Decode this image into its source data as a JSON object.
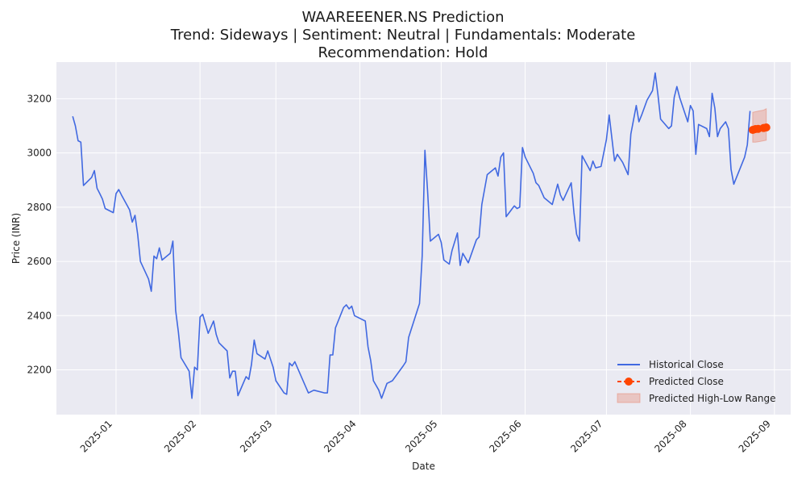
{
  "chart_data": {
    "type": "line",
    "title": "WAAREEENER.NS Prediction",
    "subtitle": "Trend: Sideways | Sentiment: Neutral | Fundamentals: Moderate",
    "recommendation": "Recommendation: Hold",
    "xlabel": "Date",
    "ylabel": "Price (INR)",
    "xlim": [
      "2024-12-10",
      "2025-09-07"
    ],
    "ylim": [
      2035,
      3335
    ],
    "x_ticks": [
      "2025-01-01",
      "2025-02-01",
      "2025-03-01",
      "2025-04-01",
      "2025-05-01",
      "2025-06-01",
      "2025-07-01",
      "2025-08-01",
      "2025-09-01"
    ],
    "x_tick_labels": [
      "2025-01",
      "2025-02",
      "2025-03",
      "2025-04",
      "2025-05",
      "2025-06",
      "2025-07",
      "2025-08",
      "2025-09"
    ],
    "y_ticks": [
      2200,
      2400,
      2600,
      2800,
      3000,
      3200
    ],
    "grid": true,
    "legend_position": "lower-right",
    "colors": {
      "historical": "#4169e1",
      "predicted": "#ff4500",
      "range": "#e8826b"
    },
    "series": [
      {
        "name": "Historical Close",
        "style": "solid",
        "points": [
          [
            "2024-12-16",
            3135
          ],
          [
            "2024-12-17",
            3100
          ],
          [
            "2024-12-18",
            3045
          ],
          [
            "2024-12-19",
            3040
          ],
          [
            "2024-12-20",
            2880
          ],
          [
            "2024-12-23",
            2910
          ],
          [
            "2024-12-24",
            2935
          ],
          [
            "2024-12-25",
            2870
          ],
          [
            "2024-12-26",
            2850
          ],
          [
            "2024-12-27",
            2830
          ],
          [
            "2024-12-28",
            2795
          ],
          [
            "2024-12-31",
            2780
          ],
          [
            "2025-01-01",
            2850
          ],
          [
            "2025-01-02",
            2865
          ],
          [
            "2025-01-03",
            2845
          ],
          [
            "2025-01-06",
            2790
          ],
          [
            "2025-01-07",
            2745
          ],
          [
            "2025-01-08",
            2770
          ],
          [
            "2025-01-09",
            2700
          ],
          [
            "2025-01-10",
            2600
          ],
          [
            "2025-01-13",
            2535
          ],
          [
            "2025-01-14",
            2490
          ],
          [
            "2025-01-15",
            2620
          ],
          [
            "2025-01-16",
            2610
          ],
          [
            "2025-01-17",
            2650
          ],
          [
            "2025-01-18",
            2605
          ],
          [
            "2025-01-21",
            2630
          ],
          [
            "2025-01-22",
            2675
          ],
          [
            "2025-01-23",
            2420
          ],
          [
            "2025-01-24",
            2340
          ],
          [
            "2025-01-25",
            2245
          ],
          [
            "2025-01-28",
            2195
          ],
          [
            "2025-01-29",
            2095
          ],
          [
            "2025-01-30",
            2210
          ],
          [
            "2025-01-31",
            2200
          ],
          [
            "2025-02-01",
            2395
          ],
          [
            "2025-02-02",
            2405
          ],
          [
            "2025-02-04",
            2335
          ],
          [
            "2025-02-06",
            2380
          ],
          [
            "2025-02-07",
            2330
          ],
          [
            "2025-02-08",
            2300
          ],
          [
            "2025-02-11",
            2270
          ],
          [
            "2025-02-12",
            2170
          ],
          [
            "2025-02-13",
            2195
          ],
          [
            "2025-02-14",
            2195
          ],
          [
            "2025-02-15",
            2105
          ],
          [
            "2025-02-18",
            2175
          ],
          [
            "2025-02-19",
            2165
          ],
          [
            "2025-02-20",
            2220
          ],
          [
            "2025-02-21",
            2310
          ],
          [
            "2025-02-22",
            2260
          ],
          [
            "2025-02-25",
            2240
          ],
          [
            "2025-02-26",
            2270
          ],
          [
            "2025-02-28",
            2210
          ],
          [
            "2025-03-01",
            2160
          ],
          [
            "2025-03-04",
            2115
          ],
          [
            "2025-03-05",
            2110
          ],
          [
            "2025-03-06",
            2225
          ],
          [
            "2025-03-07",
            2215
          ],
          [
            "2025-03-08",
            2230
          ],
          [
            "2025-03-13",
            2115
          ],
          [
            "2025-03-15",
            2125
          ],
          [
            "2025-03-19",
            2115
          ],
          [
            "2025-03-20",
            2115
          ],
          [
            "2025-03-21",
            2255
          ],
          [
            "2025-03-22",
            2255
          ],
          [
            "2025-03-23",
            2355
          ],
          [
            "2025-03-26",
            2430
          ],
          [
            "2025-03-27",
            2440
          ],
          [
            "2025-03-28",
            2425
          ],
          [
            "2025-03-29",
            2435
          ],
          [
            "2025-03-30",
            2400
          ],
          [
            "2025-04-03",
            2380
          ],
          [
            "2025-04-04",
            2285
          ],
          [
            "2025-04-05",
            2235
          ],
          [
            "2025-04-06",
            2160
          ],
          [
            "2025-04-08",
            2125
          ],
          [
            "2025-04-09",
            2095
          ],
          [
            "2025-04-11",
            2150
          ],
          [
            "2025-04-13",
            2160
          ],
          [
            "2025-04-17",
            2215
          ],
          [
            "2025-04-18",
            2230
          ],
          [
            "2025-04-19",
            2320
          ],
          [
            "2025-04-23",
            2445
          ],
          [
            "2025-04-24",
            2620
          ],
          [
            "2025-04-25",
            3010
          ],
          [
            "2025-04-26",
            2860
          ],
          [
            "2025-04-27",
            2675
          ],
          [
            "2025-04-30",
            2700
          ],
          [
            "2025-05-01",
            2670
          ],
          [
            "2025-05-02",
            2605
          ],
          [
            "2025-05-04",
            2590
          ],
          [
            "2025-05-05",
            2640
          ],
          [
            "2025-05-07",
            2705
          ],
          [
            "2025-05-08",
            2585
          ],
          [
            "2025-05-09",
            2630
          ],
          [
            "2025-05-11",
            2595
          ],
          [
            "2025-05-14",
            2680
          ],
          [
            "2025-05-15",
            2690
          ],
          [
            "2025-05-16",
            2810
          ],
          [
            "2025-05-18",
            2920
          ],
          [
            "2025-05-21",
            2945
          ],
          [
            "2025-05-22",
            2915
          ],
          [
            "2025-05-23",
            2985
          ],
          [
            "2025-05-24",
            3000
          ],
          [
            "2025-05-25",
            2765
          ],
          [
            "2025-05-28",
            2805
          ],
          [
            "2025-05-29",
            2795
          ],
          [
            "2025-05-30",
            2800
          ],
          [
            "2025-05-31",
            3020
          ],
          [
            "2025-06-01",
            2985
          ],
          [
            "2025-06-04",
            2925
          ],
          [
            "2025-06-05",
            2890
          ],
          [
            "2025-06-06",
            2880
          ],
          [
            "2025-06-08",
            2835
          ],
          [
            "2025-06-11",
            2810
          ],
          [
            "2025-06-13",
            2885
          ],
          [
            "2025-06-14",
            2845
          ],
          [
            "2025-06-15",
            2825
          ],
          [
            "2025-06-18",
            2890
          ],
          [
            "2025-06-19",
            2780
          ],
          [
            "2025-06-20",
            2700
          ],
          [
            "2025-06-21",
            2675
          ],
          [
            "2025-06-22",
            2990
          ],
          [
            "2025-06-25",
            2935
          ],
          [
            "2025-06-26",
            2970
          ],
          [
            "2025-06-27",
            2945
          ],
          [
            "2025-06-29",
            2950
          ],
          [
            "2025-07-01",
            3050
          ],
          [
            "2025-07-02",
            3140
          ],
          [
            "2025-07-04",
            2970
          ],
          [
            "2025-07-05",
            2995
          ],
          [
            "2025-07-07",
            2965
          ],
          [
            "2025-07-09",
            2920
          ],
          [
            "2025-07-10",
            3070
          ],
          [
            "2025-07-12",
            3175
          ],
          [
            "2025-07-13",
            3115
          ],
          [
            "2025-07-14",
            3140
          ],
          [
            "2025-07-16",
            3195
          ],
          [
            "2025-07-18",
            3230
          ],
          [
            "2025-07-19",
            3295
          ],
          [
            "2025-07-20",
            3215
          ],
          [
            "2025-07-21",
            3125
          ],
          [
            "2025-07-24",
            3090
          ],
          [
            "2025-07-25",
            3100
          ],
          [
            "2025-07-26",
            3205
          ],
          [
            "2025-07-27",
            3245
          ],
          [
            "2025-07-28",
            3205
          ],
          [
            "2025-07-30",
            3145
          ],
          [
            "2025-07-31",
            3115
          ],
          [
            "2025-08-01",
            3175
          ],
          [
            "2025-08-02",
            3155
          ],
          [
            "2025-08-03",
            2995
          ],
          [
            "2025-08-04",
            3105
          ],
          [
            "2025-08-07",
            3090
          ],
          [
            "2025-08-08",
            3060
          ],
          [
            "2025-08-09",
            3220
          ],
          [
            "2025-08-10",
            3165
          ],
          [
            "2025-08-11",
            3060
          ],
          [
            "2025-08-12",
            3090
          ],
          [
            "2025-08-14",
            3115
          ],
          [
            "2025-08-15",
            3090
          ],
          [
            "2025-08-16",
            2940
          ],
          [
            "2025-08-17",
            2885
          ],
          [
            "2025-08-21",
            2985
          ],
          [
            "2025-08-22",
            3030
          ],
          [
            "2025-08-23",
            3155
          ]
        ]
      },
      {
        "name": "Predicted Close",
        "style": "dashed-with-markers",
        "points": [
          [
            "2025-08-24",
            3085
          ],
          [
            "2025-08-25",
            3088
          ],
          [
            "2025-08-26",
            3089
          ],
          [
            "2025-08-28",
            3092
          ],
          [
            "2025-08-29",
            3094
          ]
        ]
      }
    ],
    "range": {
      "name": "Predicted High-Low Range",
      "points": [
        [
          "2025-08-24",
          3040,
          3150
        ],
        [
          "2025-08-25",
          3040,
          3152
        ],
        [
          "2025-08-26",
          3041,
          3154
        ],
        [
          "2025-08-28",
          3045,
          3158
        ],
        [
          "2025-08-29",
          3047,
          3163
        ]
      ]
    }
  }
}
